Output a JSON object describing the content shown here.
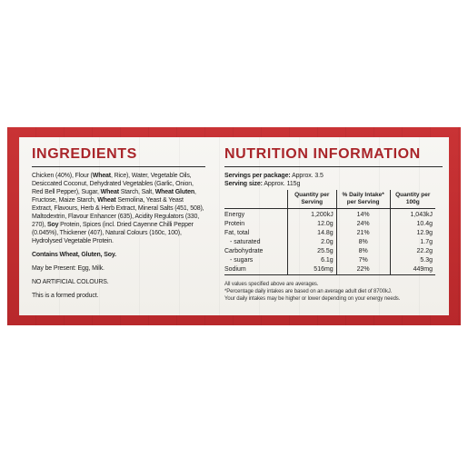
{
  "ingredients": {
    "heading": "INGREDIENTS",
    "main_segments": [
      {
        "t": "Chicken (40%), Flour (",
        "b": false
      },
      {
        "t": "Wheat",
        "b": true
      },
      {
        "t": ", Rice), Water, Vegetable Oils, Desiccated Coconut, Dehydrated Vegetables (Garlic, Onion, Red Bell Pepper), Sugar, ",
        "b": false
      },
      {
        "t": "Wheat",
        "b": true
      },
      {
        "t": " Starch, Salt, ",
        "b": false
      },
      {
        "t": "Wheat Gluten",
        "b": true
      },
      {
        "t": ", Fructose, Maize Starch, ",
        "b": false
      },
      {
        "t": "Wheat",
        "b": true
      },
      {
        "t": " Semolina, Yeast & Yeast Extract, Flavours, Herb & Herb Extract, Mineral Salts (451, 508), Maltodextrin, Flavour Enhancer (635), Acidity Regulators (330, 270), ",
        "b": false
      },
      {
        "t": "Soy",
        "b": true
      },
      {
        "t": " Protein, Spices (incl. Dried Cayenne Chilli Pepper (0.045%), Thickener (407), Natural Colours (160c, 100), Hydrolysed Vegetable Protein.",
        "b": false
      }
    ],
    "contains": "Contains Wheat, Gluten, Soy.",
    "may_be_present": "May be Present: Egg, Milk.",
    "no_artificial": "NO ARTIFICIAL COLOURS.",
    "formed_product": "This is a formed product."
  },
  "nutrition": {
    "heading": "NUTRITION INFORMATION",
    "servings_label": "Servings per package:",
    "servings_value": " Approx. 3.5",
    "size_label": "Serving size:",
    "size_value": " Approx. 115g",
    "columns": [
      "",
      "Quantity per Serving",
      "% Daily Intake* per Serving",
      "Quantity per 100g"
    ],
    "rows": [
      {
        "name": "Energy",
        "serving": "1,200kJ",
        "di": "14%",
        "per100": "1,043kJ",
        "sub": false
      },
      {
        "name": "Protein",
        "serving": "12.0g",
        "di": "24%",
        "per100": "10.4g",
        "sub": false
      },
      {
        "name": "Fat, total",
        "serving": "14.8g",
        "di": "21%",
        "per100": "12.9g",
        "sub": false
      },
      {
        "name": "- saturated",
        "serving": "2.0g",
        "di": "8%",
        "per100": "1.7g",
        "sub": true
      },
      {
        "name": "Carbohydrate",
        "serving": "25.5g",
        "di": "8%",
        "per100": "22.2g",
        "sub": false
      },
      {
        "name": "- sugars",
        "serving": "6.1g",
        "di": "7%",
        "per100": "5.3g",
        "sub": true
      },
      {
        "name": "Sodium",
        "serving": "516mg",
        "di": "22%",
        "per100": "449mg",
        "sub": false
      }
    ],
    "notes": [
      "All values specified above are averages.",
      "*Percentage daily intakes are based on an average adult diet of 8700kJ.",
      "Your daily intakes may be higher or lower depending on your energy needs."
    ]
  },
  "colors": {
    "brand_red": "#a9252a",
    "panel_red": "#c93335",
    "card_bg": "#f4f2ee"
  }
}
